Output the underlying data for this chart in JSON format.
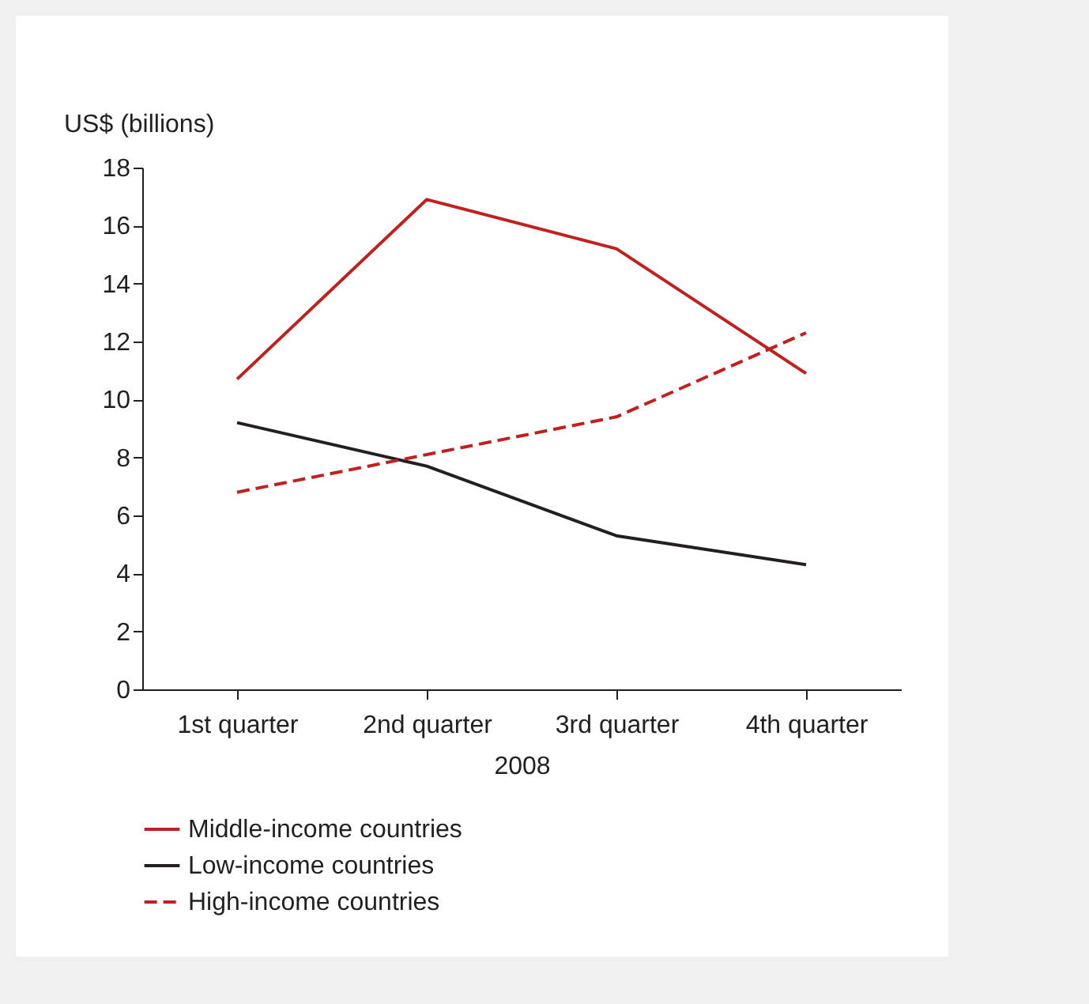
{
  "chart_data": {
    "type": "line",
    "ylabel": "US$ (billions)",
    "xlabel": "2008",
    "categories": [
      "1st quarter",
      "2nd quarter",
      "3rd quarter",
      "4th quarter"
    ],
    "ylim": [
      0,
      18
    ],
    "yticks": [
      0,
      2,
      4,
      6,
      8,
      10,
      12,
      14,
      16,
      18
    ],
    "grid": false,
    "legend": "bottom",
    "marker": "none",
    "series": [
      {
        "name": "Middle-income countries",
        "color": "#c0201f",
        "line_style": "solid",
        "values": [
          10.7,
          16.9,
          15.2,
          10.9
        ]
      },
      {
        "name": "Low-income countries",
        "color": "#231f20",
        "line_style": "solid",
        "values": [
          9.2,
          7.7,
          5.3,
          4.3
        ]
      },
      {
        "name": "High-income countries",
        "color": "#c0201f",
        "line_style": "dashed",
        "values": [
          6.8,
          8.1,
          9.4,
          12.3
        ]
      }
    ]
  }
}
